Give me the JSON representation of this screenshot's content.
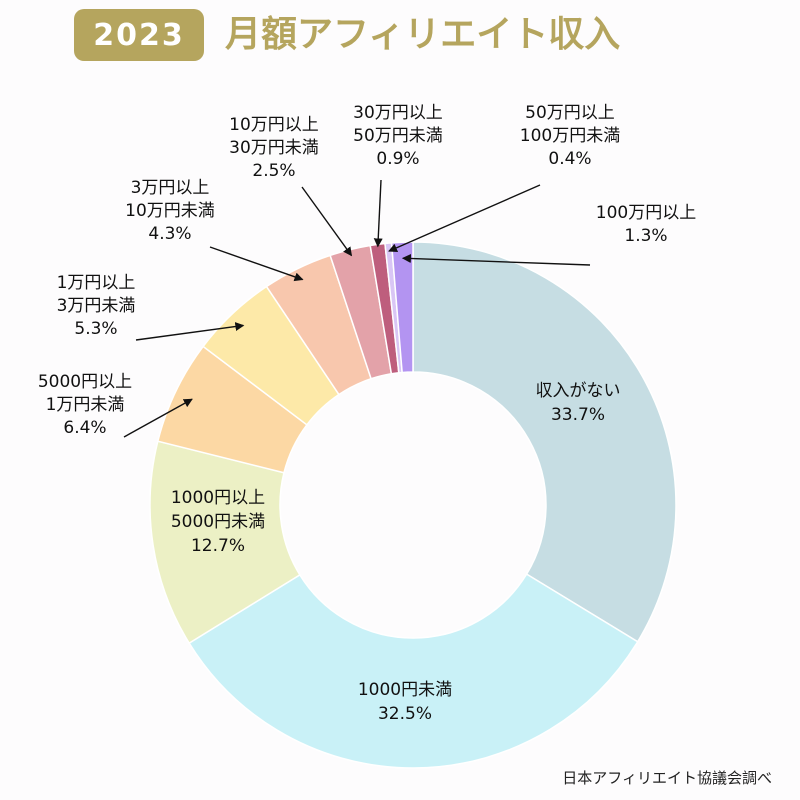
{
  "header": {
    "year": "2023",
    "title": "月額アフィリエイト収入"
  },
  "source": "日本アフィリエイト協議会調べ",
  "chart_data": {
    "type": "pie",
    "title": "月額アフィリエイト収入",
    "unit": "%",
    "slices": [
      {
        "label": [
          "収入がない"
        ],
        "value": 33.7,
        "display": "33.7%",
        "color": "#c6dde3"
      },
      {
        "label": [
          "1000円未満"
        ],
        "value": 32.5,
        "display": "32.5%",
        "color": "#c9f1f7"
      },
      {
        "label": [
          "1000円以上",
          "5000円未満"
        ],
        "value": 12.7,
        "display": "12.7%",
        "color": "#ecf0c5"
      },
      {
        "label": [
          "5000円以上",
          "1万円未満"
        ],
        "value": 6.4,
        "display": "6.4%",
        "color": "#fcd8a4"
      },
      {
        "label": [
          "1万円以上",
          "3万円未満"
        ],
        "value": 5.3,
        "display": "5.3%",
        "color": "#fde9a8"
      },
      {
        "label": [
          "3万円以上",
          "10万円未満"
        ],
        "value": 4.3,
        "display": "4.3%",
        "color": "#f8c7ad"
      },
      {
        "label": [
          "10万円以上",
          "30万円未満"
        ],
        "value": 2.5,
        "display": "2.5%",
        "color": "#e3a2a9"
      },
      {
        "label": [
          "30万円以上",
          "50万円未満"
        ],
        "value": 0.9,
        "display": "0.9%",
        "color": "#be5e7d"
      },
      {
        "label": [
          "50万円以上",
          "100万円未満"
        ],
        "value": 0.4,
        "display": "0.4%",
        "color": "#d9c6f5"
      },
      {
        "label": [
          "100万円以上"
        ],
        "value": 1.3,
        "display": "1.3%",
        "color": "#b394f1"
      }
    ],
    "start_angle_deg": 0,
    "direction": "clockwise",
    "inner_labels": [
      0,
      1,
      2
    ],
    "outer_labels": [
      3,
      4,
      5,
      6,
      7,
      8,
      9
    ]
  }
}
